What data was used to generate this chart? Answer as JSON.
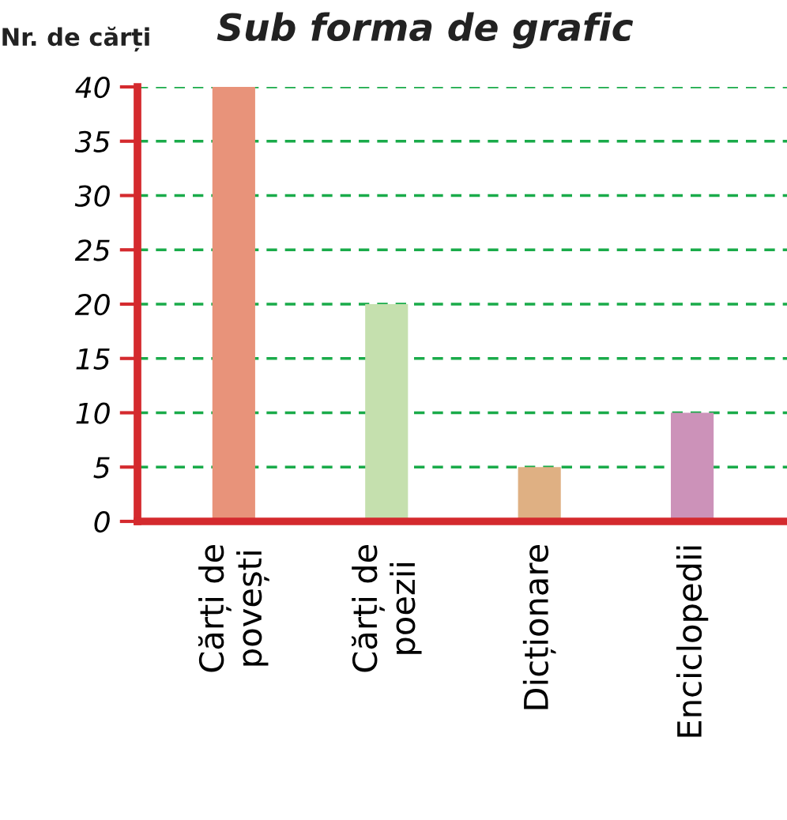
{
  "chart_data": {
    "type": "bar",
    "title": "Sub forma de grafic",
    "ylabel": "Nr. de cărți",
    "categories": [
      "Cărți de\npovești",
      "Cărți de\npoezii",
      "Dicționare",
      "Enciclopedii"
    ],
    "values": [
      40,
      20,
      5,
      10
    ],
    "colors": [
      "#e8937a",
      "#c5e0ae",
      "#dfb083",
      "#cc92b9"
    ],
    "ylim": [
      0,
      40
    ],
    "yticks": [
      0,
      5,
      10,
      15,
      20,
      25,
      30,
      35,
      40
    ],
    "grid": "y",
    "legend": false
  }
}
